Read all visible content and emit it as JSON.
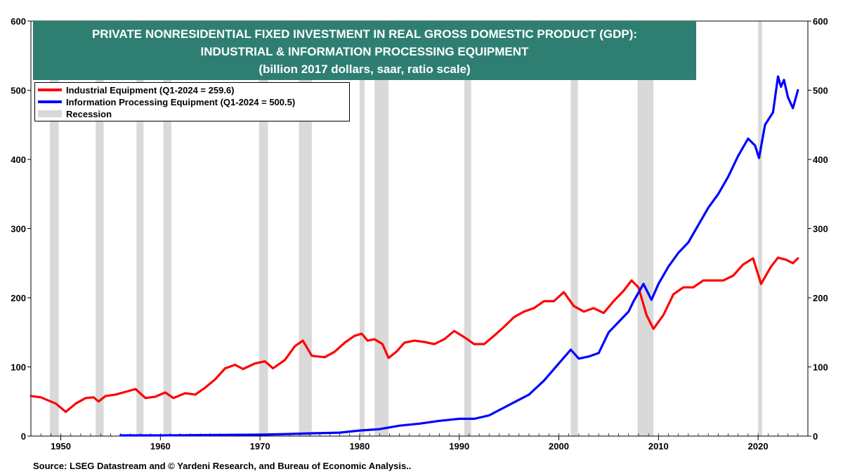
{
  "title_lines": [
    "PRIVATE NONRESIDENTIAL FIXED INVESTMENT IN REAL GROSS DOMESTIC PRODUCT (GDP):",
    "INDUSTRIAL & INFORMATION PROCESSING EQUIPMENT",
    "(billion 2017 dollars, saar, ratio scale)"
  ],
  "source": "Source: LSEG Datastream and © Yardeni Research, and Bureau of Economic Analysis..",
  "colors": {
    "industrial": "#ff0000",
    "info": "#0000ff",
    "recession": "#d9d9d9",
    "title_bg": "#2e7f72"
  },
  "chart_data": {
    "type": "line",
    "title": "PRIVATE NONRESIDENTIAL FIXED INVESTMENT IN REAL GROSS DOMESTIC PRODUCT (GDP): INDUSTRIAL & INFORMATION PROCESSING EQUIPMENT",
    "subtitle": "(billion 2017 dollars, saar, ratio scale)",
    "xlim": [
      1947,
      2025
    ],
    "ylim": [
      0,
      600
    ],
    "x_ticks": [
      1950,
      1960,
      1970,
      1980,
      1990,
      2000,
      2010,
      2020
    ],
    "y_ticks": [
      0,
      100,
      200,
      300,
      400,
      500,
      600
    ],
    "legend_position": "top-left",
    "legend": [
      "Industrial Equipment  (Q1-2024 = 259.6)",
      "Information Processing Equipment  (Q1-2024 = 500.5)",
      "Recession"
    ],
    "recessions": [
      [
        1948.9,
        1949.8
      ],
      [
        1953.5,
        1954.3
      ],
      [
        1957.6,
        1958.3
      ],
      [
        1960.3,
        1961.1
      ],
      [
        1969.9,
        1970.8
      ],
      [
        1973.9,
        1975.2
      ],
      [
        1980.0,
        1980.5
      ],
      [
        1981.5,
        1982.9
      ],
      [
        1990.5,
        1991.2
      ],
      [
        2001.2,
        2001.9
      ],
      [
        2007.9,
        2009.5
      ],
      [
        2020.0,
        2020.4
      ]
    ],
    "series": [
      {
        "name": "Industrial Equipment",
        "points": [
          [
            1947,
            58
          ],
          [
            1948,
            56
          ],
          [
            1948.5,
            53
          ],
          [
            1949.5,
            47
          ],
          [
            1950.5,
            35
          ],
          [
            1951.5,
            47
          ],
          [
            1952.5,
            55
          ],
          [
            1953.3,
            56
          ],
          [
            1953.8,
            50
          ],
          [
            1954.5,
            58
          ],
          [
            1955.5,
            60
          ],
          [
            1956.5,
            64
          ],
          [
            1957.5,
            68
          ],
          [
            1958.5,
            55
          ],
          [
            1959.5,
            57
          ],
          [
            1960.5,
            63
          ],
          [
            1961.3,
            55
          ],
          [
            1962.5,
            62
          ],
          [
            1963.5,
            60
          ],
          [
            1964.5,
            70
          ],
          [
            1965.5,
            82
          ],
          [
            1966.5,
            98
          ],
          [
            1967.5,
            103
          ],
          [
            1968.3,
            97
          ],
          [
            1969.5,
            105
          ],
          [
            1970.5,
            108
          ],
          [
            1971.3,
            98
          ],
          [
            1972.5,
            110
          ],
          [
            1973.5,
            130
          ],
          [
            1974.3,
            138
          ],
          [
            1975.2,
            116
          ],
          [
            1976.5,
            114
          ],
          [
            1977.5,
            122
          ],
          [
            1978.5,
            135
          ],
          [
            1979.5,
            145
          ],
          [
            1980.2,
            148
          ],
          [
            1980.8,
            138
          ],
          [
            1981.5,
            140
          ],
          [
            1982.3,
            133
          ],
          [
            1982.9,
            113
          ],
          [
            1983.7,
            122
          ],
          [
            1984.5,
            135
          ],
          [
            1985.5,
            138
          ],
          [
            1986.5,
            136
          ],
          [
            1987.5,
            133
          ],
          [
            1988.5,
            140
          ],
          [
            1989.5,
            152
          ],
          [
            1990.5,
            143
          ],
          [
            1991.5,
            133
          ],
          [
            1992.5,
            133
          ],
          [
            1993.5,
            145
          ],
          [
            1994.5,
            158
          ],
          [
            1995.5,
            172
          ],
          [
            1996.5,
            180
          ],
          [
            1997.5,
            185
          ],
          [
            1998.5,
            195
          ],
          [
            1999.5,
            195
          ],
          [
            2000.5,
            208
          ],
          [
            2001.5,
            188
          ],
          [
            2002.5,
            180
          ],
          [
            2003.5,
            185
          ],
          [
            2004.5,
            178
          ],
          [
            2005.5,
            195
          ],
          [
            2006.5,
            210
          ],
          [
            2007.3,
            225
          ],
          [
            2008.0,
            215
          ],
          [
            2008.8,
            175
          ],
          [
            2009.5,
            155
          ],
          [
            2010.5,
            175
          ],
          [
            2011.5,
            205
          ],
          [
            2012.5,
            215
          ],
          [
            2013.5,
            215
          ],
          [
            2014.5,
            225
          ],
          [
            2015.5,
            225
          ],
          [
            2016.5,
            225
          ],
          [
            2017.5,
            232
          ],
          [
            2018.5,
            248
          ],
          [
            2019.5,
            257
          ],
          [
            2020.3,
            220
          ],
          [
            2021.3,
            245
          ],
          [
            2022.0,
            258
          ],
          [
            2022.8,
            255
          ],
          [
            2023.5,
            250
          ],
          [
            2024.0,
            257
          ]
        ]
      },
      {
        "name": "Information Processing Equipment",
        "points": [
          [
            1956,
            1
          ],
          [
            1960,
            1
          ],
          [
            1965,
            1.5
          ],
          [
            1970,
            2
          ],
          [
            1973,
            3
          ],
          [
            1975,
            4
          ],
          [
            1978,
            5
          ],
          [
            1980,
            8
          ],
          [
            1982,
            10
          ],
          [
            1984,
            15
          ],
          [
            1986,
            18
          ],
          [
            1988,
            22
          ],
          [
            1990,
            25
          ],
          [
            1991.5,
            25
          ],
          [
            1993,
            30
          ],
          [
            1995,
            45
          ],
          [
            1997,
            60
          ],
          [
            1998.5,
            80
          ],
          [
            2000,
            105
          ],
          [
            2001.2,
            125
          ],
          [
            2002,
            112
          ],
          [
            2003,
            115
          ],
          [
            2004,
            120
          ],
          [
            2005,
            150
          ],
          [
            2006,
            165
          ],
          [
            2007,
            180
          ],
          [
            2007.5,
            195
          ],
          [
            2008.5,
            220
          ],
          [
            2009.3,
            197
          ],
          [
            2010,
            220
          ],
          [
            2011,
            245
          ],
          [
            2012,
            265
          ],
          [
            2013,
            280
          ],
          [
            2014,
            305
          ],
          [
            2015,
            330
          ],
          [
            2016,
            350
          ],
          [
            2017,
            375
          ],
          [
            2018,
            405
          ],
          [
            2019,
            430
          ],
          [
            2019.7,
            420
          ],
          [
            2020.1,
            402
          ],
          [
            2020.7,
            450
          ],
          [
            2021.5,
            468
          ],
          [
            2022.0,
            520
          ],
          [
            2022.3,
            505
          ],
          [
            2022.6,
            515
          ],
          [
            2023.0,
            490
          ],
          [
            2023.5,
            474
          ],
          [
            2024.0,
            500
          ]
        ]
      }
    ]
  }
}
